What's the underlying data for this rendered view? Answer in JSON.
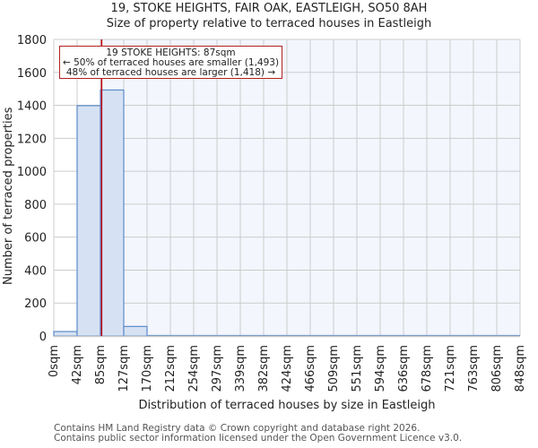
{
  "header": {
    "title": "19, STOKE HEIGHTS, FAIR OAK, EASTLEIGH, SO50 8AH",
    "subtitle": "Size of property relative to terraced houses in Eastleigh"
  },
  "annotation": {
    "line1": "19 STOKE HEIGHTS: 87sqm",
    "line2": "← 50% of terraced houses are smaller (1,493)",
    "line3": "48% of terraced houses are larger (1,418) →"
  },
  "footer": {
    "line1": "Contains HM Land Registry data © Crown copyright and database right 2026.",
    "line2": "Contains public sector information licensed under the Open Government Licence v3.0."
  },
  "colors": {
    "bar_fill": "#d6e2f3",
    "bar_edge": "#5b8cc9",
    "highlight_bg": "#f3f6fd",
    "marker_line": "#c0000f",
    "grid": "#cccccc"
  },
  "chart_data": {
    "type": "bar",
    "title": "19, STOKE HEIGHTS, FAIR OAK, EASTLEIGH, SO50 8AH",
    "subtitle": "Size of property relative to terraced houses in Eastleigh",
    "xlabel": "Distribution of terraced houses by size in Eastleigh",
    "ylabel": "Number of terraced properties",
    "categories": [
      "0sqm",
      "42sqm",
      "85sqm",
      "127sqm",
      "170sqm",
      "212sqm",
      "254sqm",
      "297sqm",
      "339sqm",
      "382sqm",
      "424sqm",
      "466sqm",
      "509sqm",
      "551sqm",
      "594sqm",
      "636sqm",
      "678sqm",
      "721sqm",
      "763sqm",
      "806sqm",
      "848sqm"
    ],
    "bin_edges": [
      0,
      42,
      85,
      127,
      170,
      212,
      254,
      297,
      339,
      382,
      424,
      466,
      509,
      551,
      594,
      636,
      678,
      721,
      763,
      806,
      848
    ],
    "values": [
      27,
      1398,
      1493,
      58,
      3,
      0,
      0,
      0,
      0,
      0,
      0,
      0,
      0,
      0,
      0,
      0,
      0,
      0,
      0,
      0
    ],
    "yticks": [
      0,
      200,
      400,
      600,
      800,
      1000,
      1200,
      1400,
      1600,
      1800
    ],
    "ylim": [
      0,
      1800
    ],
    "grid": true,
    "marker": {
      "value": 87,
      "label": "19 STOKE HEIGHTS: 87sqm"
    }
  }
}
